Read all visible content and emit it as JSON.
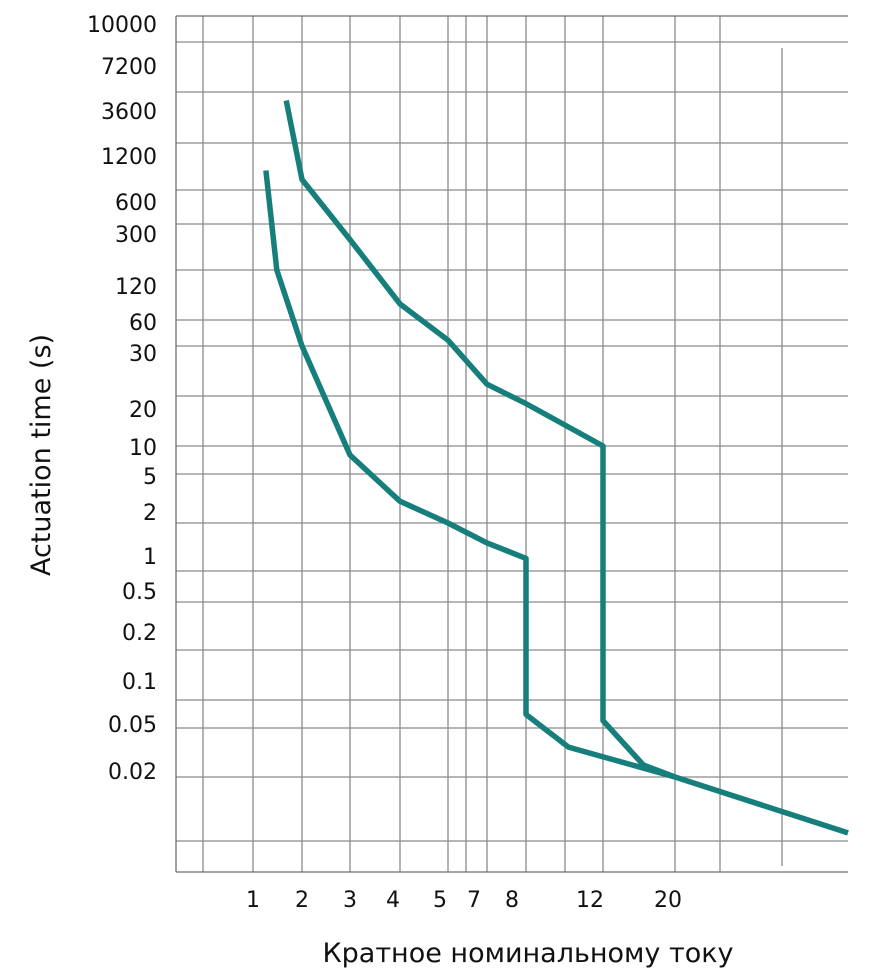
{
  "chart_data": {
    "type": "line",
    "title": "",
    "xlabel": "Кратное номинальному току",
    "ylabel": "Actuation time (s)",
    "x_tick_labels": [
      "1",
      "2",
      "3",
      "4",
      "5",
      "7",
      "8",
      "12",
      "20"
    ],
    "y_tick_labels": [
      "10000",
      "7200",
      "3600",
      "1200",
      "600",
      "300",
      "120",
      "60",
      "30",
      "20",
      "10",
      "5",
      "2",
      "1",
      "0.5",
      "0.2",
      "0.1",
      "0.05",
      "0.02"
    ],
    "grid": true,
    "legend": "none",
    "series": [
      {
        "color": "#167f7c",
        "points": [
          {
            "x": 1.2,
            "y": 800
          },
          {
            "x": 1.4,
            "y": 120
          },
          {
            "x": 2,
            "y": 30
          },
          {
            "x": 3,
            "y": 8
          },
          {
            "x": 4,
            "y": 3
          },
          {
            "x": 5,
            "y": 2
          },
          {
            "x": 7,
            "y": 1.5
          },
          {
            "x": 8,
            "y": 1.2
          },
          {
            "x": 8,
            "y": 0.07
          },
          {
            "x": 10,
            "y": 0.035
          },
          {
            "x": 20,
            "y": 0.02
          },
          {
            "x": 50,
            "y": 0.008
          }
        ]
      },
      {
        "color": "#167f7c",
        "points": [
          {
            "x": 1.6,
            "y": 3000
          },
          {
            "x": 2,
            "y": 700
          },
          {
            "x": 3,
            "y": 220
          },
          {
            "x": 4,
            "y": 75
          },
          {
            "x": 5,
            "y": 35
          },
          {
            "x": 7,
            "y": 22
          },
          {
            "x": 8,
            "y": 18
          },
          {
            "x": 12,
            "y": 10
          },
          {
            "x": 12,
            "y": 0.06
          },
          {
            "x": 16,
            "y": 0.025
          },
          {
            "x": 20,
            "y": 0.02
          }
        ]
      }
    ]
  }
}
